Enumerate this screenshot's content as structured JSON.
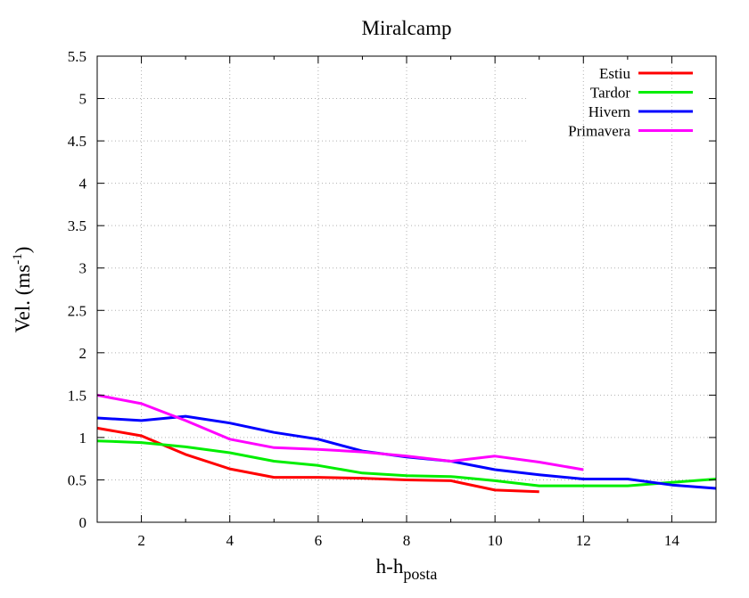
{
  "chart_data": {
    "type": "line",
    "title": "Miralcamp",
    "xlabel_main": "h-h",
    "xlabel_sub": "posta",
    "ylabel_main": "Vel. (ms",
    "ylabel_sup": "-1",
    "ylabel_close": ")",
    "xlim": [
      1,
      15
    ],
    "ylim": [
      0,
      5.5
    ],
    "xticks": [
      2,
      4,
      6,
      8,
      10,
      12,
      14
    ],
    "yticks": [
      0,
      0.5,
      1,
      1.5,
      2,
      2.5,
      3,
      3.5,
      4,
      4.5,
      5,
      5.5
    ],
    "grid": true,
    "legend_position": "top-right",
    "series": [
      {
        "name": "Estiu",
        "color": "#ff0000",
        "x": [
          1,
          2,
          3,
          4,
          5,
          6,
          7,
          8,
          9,
          10,
          11
        ],
        "y": [
          1.11,
          1.02,
          0.8,
          0.63,
          0.53,
          0.53,
          0.52,
          0.5,
          0.49,
          0.38,
          0.36
        ]
      },
      {
        "name": "Tardor",
        "color": "#00ee00",
        "x": [
          1,
          2,
          3,
          4,
          5,
          6,
          7,
          8,
          9,
          10,
          11,
          12,
          13,
          14,
          15
        ],
        "y": [
          0.96,
          0.94,
          0.89,
          0.82,
          0.72,
          0.67,
          0.58,
          0.55,
          0.54,
          0.49,
          0.43,
          0.43,
          0.43,
          0.47,
          0.51
        ]
      },
      {
        "name": "Hivern",
        "color": "#0000ff",
        "x": [
          1,
          2,
          3,
          4,
          5,
          6,
          7,
          8,
          9,
          10,
          11,
          12,
          13,
          14,
          15
        ],
        "y": [
          1.23,
          1.2,
          1.25,
          1.17,
          1.06,
          0.98,
          0.84,
          0.77,
          0.72,
          0.62,
          0.56,
          0.51,
          0.51,
          0.44,
          0.4
        ]
      },
      {
        "name": "Primavera",
        "color": "#ff00ff",
        "x": [
          1,
          2,
          3,
          4,
          5,
          6,
          7,
          8,
          9,
          10,
          11,
          12
        ],
        "y": [
          1.5,
          1.4,
          1.2,
          0.98,
          0.88,
          0.86,
          0.83,
          0.78,
          0.72,
          0.78,
          0.71,
          0.62
        ]
      }
    ]
  }
}
